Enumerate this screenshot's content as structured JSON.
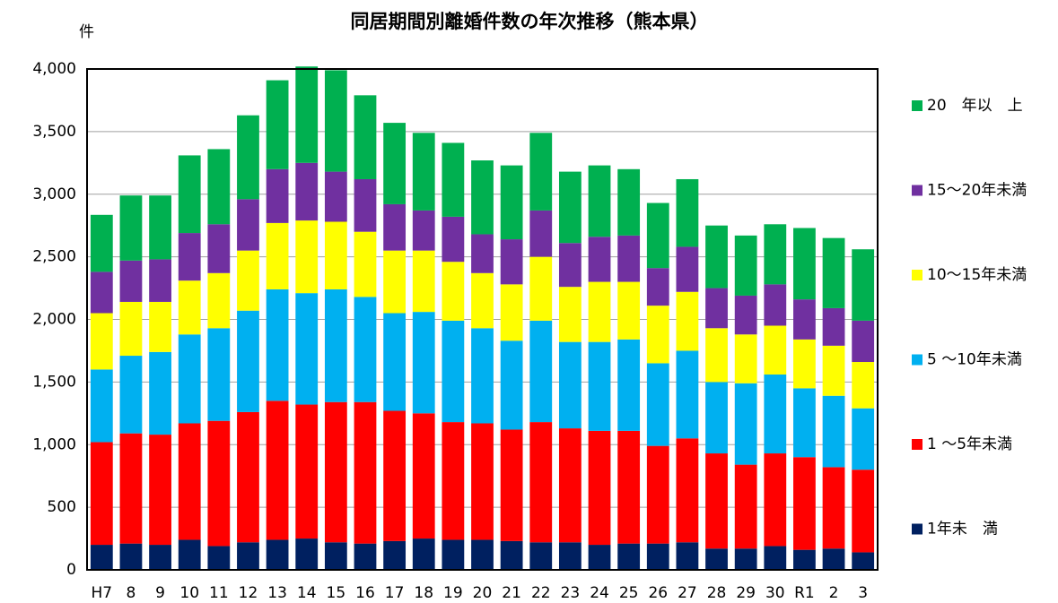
{
  "chart_data": {
    "type": "stacked_bar",
    "title": "同居期間別離婚件数の年次推移（熊本県）",
    "y_label": "件",
    "categories": [
      "H7",
      "8",
      "9",
      "10",
      "11",
      "12",
      "13",
      "14",
      "15",
      "16",
      "17",
      "18",
      "19",
      "20",
      "21",
      "22",
      "23",
      "24",
      "25",
      "26",
      "27",
      "28",
      "29",
      "30",
      "R1",
      "2",
      "3"
    ],
    "series": [
      {
        "name": "1年未　満",
        "color": "#002060",
        "values": [
          200,
          210,
          200,
          240,
          190,
          220,
          240,
          250,
          220,
          210,
          230,
          250,
          240,
          240,
          230,
          220,
          220,
          200,
          210,
          210,
          220,
          170,
          170,
          190,
          160,
          170,
          140
        ]
      },
      {
        "name": "1 ～5年未満",
        "color": "#ff0000",
        "values": [
          820,
          880,
          880,
          930,
          1000,
          1040,
          1110,
          1070,
          1120,
          1130,
          1040,
          1000,
          940,
          930,
          890,
          960,
          910,
          910,
          900,
          780,
          830,
          760,
          670,
          740,
          740,
          650,
          660
        ]
      },
      {
        "name": "5 ～10年未満",
        "color": "#00b0f0",
        "values": [
          580,
          620,
          660,
          710,
          740,
          810,
          890,
          890,
          900,
          840,
          780,
          810,
          810,
          760,
          710,
          810,
          690,
          710,
          730,
          660,
          700,
          570,
          650,
          630,
          550,
          570,
          490
        ]
      },
      {
        "name": "10～15年未満",
        "color": "#ffff00",
        "values": [
          450,
          430,
          400,
          430,
          440,
          480,
          530,
          580,
          540,
          520,
          500,
          490,
          470,
          440,
          450,
          510,
          440,
          480,
          460,
          460,
          470,
          430,
          390,
          390,
          390,
          400,
          370
        ]
      },
      {
        "name": "15～20年未満",
        "color": "#7030a0",
        "values": [
          330,
          330,
          340,
          380,
          390,
          410,
          430,
          460,
          400,
          420,
          370,
          320,
          360,
          310,
          360,
          370,
          350,
          360,
          370,
          300,
          360,
          320,
          310,
          330,
          320,
          300,
          330
        ]
      },
      {
        "name": "20　年以　上",
        "color": "#00b050",
        "values": [
          455,
          520,
          510,
          620,
          600,
          670,
          710,
          770,
          810,
          670,
          650,
          620,
          590,
          590,
          590,
          620,
          570,
          570,
          530,
          520,
          540,
          500,
          480,
          480,
          570,
          560,
          570
        ]
      }
    ],
    "ylim": [
      0,
      4000
    ],
    "yticks": [
      0,
      500,
      {
        "value": 1000,
        "label": "1,000"
      },
      {
        "value": 1500,
        "label": "1,500"
      },
      {
        "value": 2000,
        "label": "2,000"
      },
      {
        "value": 2500,
        "label": "2,500"
      },
      {
        "value": 3000,
        "label": "3,000"
      },
      {
        "value": 3500,
        "label": "3,500"
      },
      {
        "value": 4000,
        "label": "4,000"
      }
    ],
    "grid": true,
    "legend": "right"
  }
}
